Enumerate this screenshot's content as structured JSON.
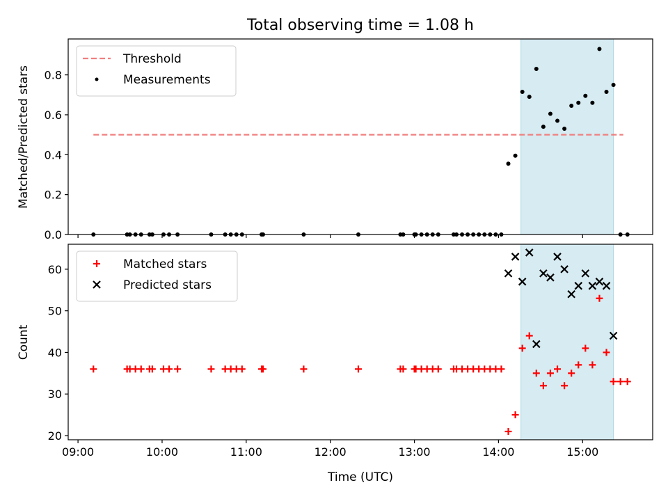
{
  "figure": {
    "title": "Total observing time = 1.08 h",
    "xlabel": "Time (UTC)",
    "xtick_labels": [
      "09:00",
      "10:00",
      "11:00",
      "12:00",
      "13:00",
      "14:00",
      "15:00"
    ]
  },
  "colors": {
    "threshold": "#f08080",
    "measurements": "#000000",
    "matched": "#ff0000",
    "predicted": "#000000",
    "span_fill": "#add8e6"
  },
  "chart_data": [
    {
      "type": "scatter",
      "ylabel": "Matched/Predicted stars",
      "xlim": [
        "08:53",
        "15:50"
      ],
      "ylim": [
        0,
        0.98
      ],
      "yticks": [
        0.0,
        0.2,
        0.4,
        0.6,
        0.8
      ],
      "ytick_labels": [
        "0.0",
        "0.2",
        "0.4",
        "0.6",
        "0.8"
      ],
      "legend_location": "upper left",
      "shaded_span": [
        "14:16",
        "15:22"
      ],
      "threshold": {
        "name": "Threshold",
        "style": "dashed",
        "y": 0.5,
        "x_range": [
          "09:11",
          "15:29"
        ]
      },
      "series": [
        {
          "name": "Measurements",
          "x": [
            "09:11",
            "09:35",
            "09:37",
            "09:41",
            "09:45",
            "09:51",
            "09:53",
            "10:01",
            "10:05",
            "10:11",
            "10:35",
            "10:45",
            "10:49",
            "10:53",
            "10:57",
            "11:11",
            "11:12",
            "11:41",
            "12:20",
            "12:50",
            "12:52",
            "13:00",
            "13:01",
            "13:05",
            "13:09",
            "13:13",
            "13:17",
            "13:28",
            "13:30",
            "13:34",
            "13:38",
            "13:42",
            "13:46",
            "13:50",
            "13:54",
            "13:58",
            "14:02",
            "14:07",
            "14:12",
            "14:17",
            "14:22",
            "14:27",
            "14:32",
            "14:37",
            "14:42",
            "14:47",
            "14:52",
            "14:57",
            "15:02",
            "15:07",
            "15:12",
            "15:17",
            "15:22",
            "15:27",
            "15:32"
          ],
          "y": [
            0,
            0,
            0,
            0,
            0,
            0,
            0,
            0,
            0,
            0,
            0,
            0,
            0,
            0,
            0,
            0,
            0,
            0,
            0,
            0,
            0,
            0,
            0,
            0,
            0,
            0,
            0,
            0,
            0,
            0,
            0,
            0,
            0,
            0,
            0,
            0,
            0,
            0.355,
            0.395,
            0.715,
            0.69,
            0.83,
            0.54,
            0.605,
            0.57,
            0.53,
            0.645,
            0.66,
            0.695,
            0.66,
            0.93,
            0.715,
            0.75,
            0,
            0
          ]
        }
      ]
    },
    {
      "type": "scatter",
      "ylabel": "Count",
      "xlim": [
        "08:53",
        "15:50"
      ],
      "ylim": [
        19,
        66
      ],
      "yticks": [
        20,
        30,
        40,
        50,
        60
      ],
      "ytick_labels": [
        "20",
        "30",
        "40",
        "50",
        "60"
      ],
      "legend_location": "upper left",
      "shaded_span": [
        "14:16",
        "15:22"
      ],
      "series": [
        {
          "name": "Matched stars",
          "marker": "+",
          "x": [
            "09:11",
            "09:35",
            "09:37",
            "09:41",
            "09:45",
            "09:51",
            "09:53",
            "10:01",
            "10:05",
            "10:11",
            "10:35",
            "10:45",
            "10:49",
            "10:53",
            "10:57",
            "11:11",
            "11:12",
            "11:41",
            "12:20",
            "12:50",
            "12:52",
            "13:00",
            "13:01",
            "13:05",
            "13:09",
            "13:13",
            "13:17",
            "13:28",
            "13:30",
            "13:34",
            "13:38",
            "13:42",
            "13:46",
            "13:50",
            "13:54",
            "13:58",
            "14:02",
            "14:07",
            "14:12",
            "14:17",
            "14:22",
            "14:27",
            "14:32",
            "14:37",
            "14:42",
            "14:47",
            "14:52",
            "14:57",
            "15:02",
            "15:07",
            "15:12",
            "15:17",
            "15:22",
            "15:27",
            "15:32"
          ],
          "y": [
            36,
            36,
            36,
            36,
            36,
            36,
            36,
            36,
            36,
            36,
            36,
            36,
            36,
            36,
            36,
            36,
            36,
            36,
            36,
            36,
            36,
            36,
            36,
            36,
            36,
            36,
            36,
            36,
            36,
            36,
            36,
            36,
            36,
            36,
            36,
            36,
            36,
            21,
            25,
            41,
            44,
            35,
            32,
            35,
            36,
            32,
            35,
            37,
            41,
            37,
            53,
            40,
            33,
            33,
            33
          ]
        },
        {
          "name": "Predicted stars",
          "marker": "x",
          "x": [
            "14:07",
            "14:12",
            "14:17",
            "14:22",
            "14:27",
            "14:32",
            "14:37",
            "14:42",
            "14:47",
            "14:52",
            "14:57",
            "15:02",
            "15:07",
            "15:12",
            "15:17",
            "15:22"
          ],
          "y": [
            59,
            63,
            57,
            64,
            42,
            59,
            58,
            63,
            60,
            54,
            56,
            59,
            56,
            57,
            56,
            44
          ]
        }
      ]
    }
  ]
}
